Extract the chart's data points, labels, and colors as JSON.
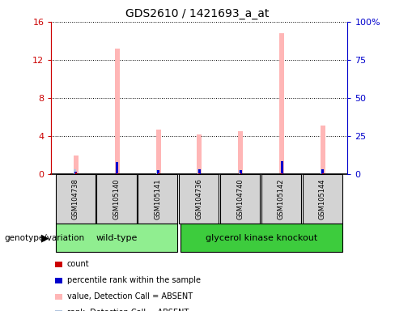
{
  "title": "GDS2610 / 1421693_a_at",
  "samples": [
    "GSM104738",
    "GSM105140",
    "GSM105141",
    "GSM104736",
    "GSM104740",
    "GSM105142",
    "GSM105144"
  ],
  "wt_indices": [
    0,
    1,
    2
  ],
  "gk_indices": [
    3,
    4,
    5,
    6
  ],
  "pink_bars": [
    2.0,
    13.2,
    4.65,
    4.2,
    4.5,
    14.8,
    5.1
  ],
  "red_bars": [
    0.18,
    0.12,
    0.06,
    0.08,
    0.1,
    0.08,
    0.12
  ],
  "blue_bars": [
    0.28,
    1.3,
    0.42,
    0.48,
    0.42,
    1.38,
    0.5
  ],
  "lightblue_bars": [
    0.55,
    0.0,
    0.42,
    0.48,
    0.42,
    0.0,
    0.5
  ],
  "ylim_left": [
    0,
    16
  ],
  "ylim_right": [
    0,
    100
  ],
  "yticks_left": [
    0,
    4,
    8,
    12,
    16
  ],
  "yticks_right": [
    0,
    25,
    50,
    75,
    100
  ],
  "yticklabels_left": [
    "0",
    "4",
    "8",
    "12",
    "16"
  ],
  "yticklabels_right": [
    "0",
    "25",
    "50",
    "75",
    "100%"
  ],
  "wt_color": "#90EE90",
  "gk_color": "#3DCC3D",
  "box_color": "#d3d3d3",
  "background_color": "#ffffff",
  "left_axis_color": "#cc0000",
  "right_axis_color": "#0000cc",
  "legend_items": [
    {
      "label": "count",
      "color": "#cc0000"
    },
    {
      "label": "percentile rank within the sample",
      "color": "#0000cc"
    },
    {
      "label": "value, Detection Call = ABSENT",
      "color": "#ffb6b6"
    },
    {
      "label": "rank, Detection Call = ABSENT",
      "color": "#b0c4de"
    }
  ]
}
